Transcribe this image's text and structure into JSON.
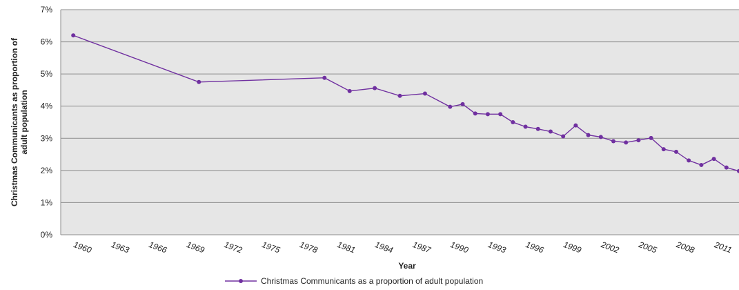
{
  "chart_data": {
    "type": "line",
    "title": "",
    "xlabel": "Year",
    "ylabel": "Christmas Communicants as proportion of adult population",
    "ylim": [
      0,
      7
    ],
    "yticks": [
      "0%",
      "1%",
      "2%",
      "3%",
      "4%",
      "5%",
      "6%",
      "7%"
    ],
    "xticks": [
      "1960",
      "1963",
      "1966",
      "1969",
      "1972",
      "1975",
      "1978",
      "1981",
      "1984",
      "1987",
      "1990",
      "1993",
      "1996",
      "1999",
      "2002",
      "2005",
      "2008",
      "2011"
    ],
    "grid": true,
    "legend": "bottom",
    "colors": {
      "series": "#7030a0",
      "plot_bg": "#e6e6e6",
      "grid": "#8c8c8c"
    },
    "series": [
      {
        "name": "Christmas Communicants as a proportion of adult population",
        "x": [
          1960,
          1970,
          1980,
          1982,
          1984,
          1986,
          1988,
          1990,
          1991,
          1992,
          1993,
          1994,
          1995,
          1996,
          1997,
          1998,
          1999,
          2000,
          2001,
          2002,
          2003,
          2004,
          2005,
          2006,
          2007,
          2008,
          2009,
          2010,
          2011,
          2012,
          2013
        ],
        "values": [
          6.2,
          4.75,
          4.88,
          4.47,
          4.56,
          4.32,
          4.39,
          3.98,
          4.06,
          3.77,
          3.75,
          3.75,
          3.5,
          3.36,
          3.29,
          3.21,
          3.06,
          3.4,
          3.1,
          3.04,
          2.91,
          2.87,
          2.94,
          3.01,
          2.66,
          2.58,
          2.31,
          2.17,
          2.36,
          2.09,
          1.98
        ]
      }
    ]
  }
}
